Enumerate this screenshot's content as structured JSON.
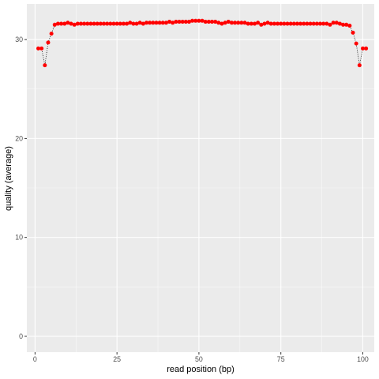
{
  "chart_data": {
    "type": "scatter",
    "title": "",
    "xlabel": "read position (bp)",
    "ylabel": "quality (average)",
    "xlim": [
      -2.5,
      103.5
    ],
    "ylim": [
      -1.6,
      33.6
    ],
    "x_ticks": [
      0,
      25,
      50,
      75,
      100
    ],
    "y_ticks": [
      0,
      10,
      20,
      30
    ],
    "grid": true,
    "legend": "none",
    "point_color": "#ff0000",
    "line_color": "#000000",
    "line_style": "dotted",
    "panel_background": "#ebebeb",
    "x": [
      1,
      2,
      3,
      4,
      5,
      6,
      7,
      8,
      9,
      10,
      11,
      12,
      13,
      14,
      15,
      16,
      17,
      18,
      19,
      20,
      21,
      22,
      23,
      24,
      25,
      26,
      27,
      28,
      29,
      30,
      31,
      32,
      33,
      34,
      35,
      36,
      37,
      38,
      39,
      40,
      41,
      42,
      43,
      44,
      45,
      46,
      47,
      48,
      49,
      50,
      51,
      52,
      53,
      54,
      55,
      56,
      57,
      58,
      59,
      60,
      61,
      62,
      63,
      64,
      65,
      66,
      67,
      68,
      69,
      70,
      71,
      72,
      73,
      74,
      75,
      76,
      77,
      78,
      79,
      80,
      81,
      82,
      83,
      84,
      85,
      86,
      87,
      88,
      89,
      90,
      91,
      92,
      93,
      94,
      95,
      96,
      97,
      98,
      99,
      100,
      101
    ],
    "y": [
      29.1,
      29.1,
      27.4,
      29.7,
      30.6,
      31.5,
      31.6,
      31.6,
      31.6,
      31.7,
      31.6,
      31.5,
      31.6,
      31.6,
      31.6,
      31.6,
      31.6,
      31.6,
      31.6,
      31.6,
      31.6,
      31.6,
      31.6,
      31.6,
      31.6,
      31.6,
      31.6,
      31.6,
      31.7,
      31.6,
      31.6,
      31.7,
      31.6,
      31.7,
      31.7,
      31.7,
      31.7,
      31.7,
      31.7,
      31.7,
      31.8,
      31.7,
      31.8,
      31.8,
      31.8,
      31.8,
      31.8,
      31.9,
      31.9,
      31.9,
      31.9,
      31.8,
      31.8,
      31.8,
      31.8,
      31.7,
      31.6,
      31.7,
      31.8,
      31.7,
      31.7,
      31.7,
      31.7,
      31.7,
      31.6,
      31.6,
      31.6,
      31.7,
      31.5,
      31.6,
      31.7,
      31.6,
      31.6,
      31.6,
      31.6,
      31.6,
      31.6,
      31.6,
      31.6,
      31.6,
      31.6,
      31.6,
      31.6,
      31.6,
      31.6,
      31.6,
      31.6,
      31.6,
      31.6,
      31.5,
      31.7,
      31.7,
      31.6,
      31.5,
      31.5,
      31.4,
      30.7,
      29.6,
      27.4,
      29.1,
      29.1
    ]
  }
}
